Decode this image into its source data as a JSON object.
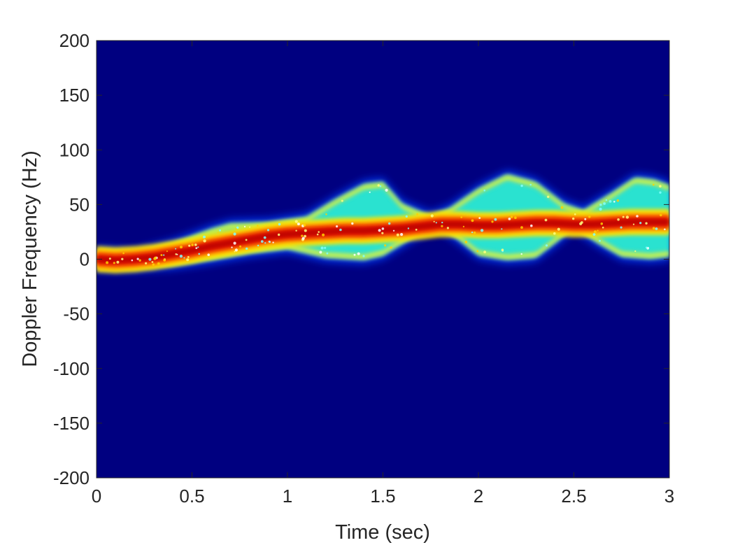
{
  "chart_data": {
    "type": "heatmap",
    "subtype": "micro-Doppler spectrogram",
    "title": "",
    "xlabel": "Time (sec)",
    "ylabel": "Doppler Frequency (Hz)",
    "xlim": [
      0,
      3
    ],
    "ylim": [
      -200,
      200
    ],
    "xticks": [
      {
        "value": 0,
        "label": "0"
      },
      {
        "value": 0.5,
        "label": "0.5"
      },
      {
        "value": 1,
        "label": "1"
      },
      {
        "value": 1.5,
        "label": "1.5"
      },
      {
        "value": 2,
        "label": "2"
      },
      {
        "value": 2.5,
        "label": "2.5"
      },
      {
        "value": 3,
        "label": "3"
      }
    ],
    "yticks": [
      {
        "value": 200,
        "label": "200"
      },
      {
        "value": 150,
        "label": "150"
      },
      {
        "value": 100,
        "label": "100"
      },
      {
        "value": 50,
        "label": "50"
      },
      {
        "value": 0,
        "label": "0"
      },
      {
        "value": -50,
        "label": "-50"
      },
      {
        "value": -100,
        "label": "-100"
      },
      {
        "value": -150,
        "label": "-150"
      },
      {
        "value": -200,
        "label": "-200"
      }
    ],
    "grid": false,
    "colormap": "jet",
    "background_color": "#000080",
    "signal_components": {
      "main_trace": {
        "description": "high-intensity central Doppler trace",
        "points": [
          [
            0.0,
            0
          ],
          [
            0.1,
            -1
          ],
          [
            0.2,
            0
          ],
          [
            0.3,
            2
          ],
          [
            0.4,
            5
          ],
          [
            0.5,
            8
          ],
          [
            0.6,
            12
          ],
          [
            0.7,
            15
          ],
          [
            0.8,
            18
          ],
          [
            0.9,
            21
          ],
          [
            1.0,
            23
          ],
          [
            1.1,
            24
          ],
          [
            1.2,
            25
          ],
          [
            1.3,
            26
          ],
          [
            1.4,
            26
          ],
          [
            1.5,
            27
          ],
          [
            1.6,
            28
          ],
          [
            1.7,
            30
          ],
          [
            1.8,
            32
          ],
          [
            1.9,
            32
          ],
          [
            2.0,
            31
          ],
          [
            2.1,
            31
          ],
          [
            2.2,
            32
          ],
          [
            2.3,
            33
          ],
          [
            2.4,
            33
          ],
          [
            2.5,
            32
          ],
          [
            2.6,
            32
          ],
          [
            2.7,
            33
          ],
          [
            2.8,
            34
          ],
          [
            2.9,
            34
          ],
          [
            3.0,
            34
          ]
        ]
      },
      "upper_envelope": {
        "description": "upper swing of limb micro-Doppler",
        "points": [
          [
            0.0,
            5
          ],
          [
            0.2,
            3
          ],
          [
            0.4,
            12
          ],
          [
            0.6,
            25
          ],
          [
            0.7,
            30
          ],
          [
            0.9,
            31
          ],
          [
            1.1,
            36
          ],
          [
            1.25,
            52
          ],
          [
            1.4,
            66
          ],
          [
            1.5,
            68
          ],
          [
            1.6,
            48
          ],
          [
            1.75,
            37
          ],
          [
            1.85,
            44
          ],
          [
            2.0,
            62
          ],
          [
            2.15,
            75
          ],
          [
            2.3,
            68
          ],
          [
            2.45,
            48
          ],
          [
            2.55,
            42
          ],
          [
            2.7,
            58
          ],
          [
            2.82,
            72
          ],
          [
            2.92,
            70
          ],
          [
            3.0,
            65
          ]
        ]
      },
      "lower_envelope": {
        "description": "lower swing of limb micro-Doppler",
        "points": [
          [
            0.0,
            -5
          ],
          [
            0.2,
            -5
          ],
          [
            0.4,
            -3
          ],
          [
            0.6,
            2
          ],
          [
            0.8,
            8
          ],
          [
            1.0,
            12
          ],
          [
            1.2,
            4
          ],
          [
            1.4,
            2
          ],
          [
            1.5,
            6
          ],
          [
            1.65,
            22
          ],
          [
            1.78,
            34
          ],
          [
            1.9,
            20
          ],
          [
            2.0,
            6
          ],
          [
            2.15,
            2
          ],
          [
            2.3,
            4
          ],
          [
            2.42,
            20
          ],
          [
            2.5,
            32
          ],
          [
            2.62,
            18
          ],
          [
            2.75,
            5
          ],
          [
            2.9,
            3
          ],
          [
            3.0,
            5
          ]
        ]
      }
    }
  }
}
